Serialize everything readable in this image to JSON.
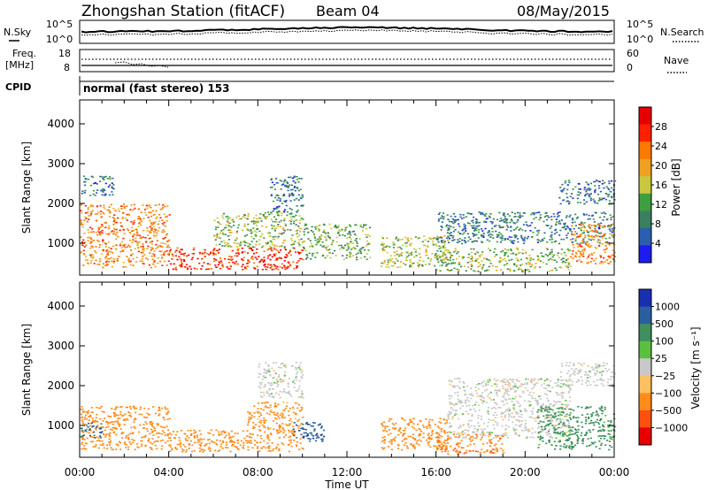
{
  "header": {
    "station": "Zhongshan Station (fitACF)",
    "beam": "Beam 04",
    "date": "08/May/2015"
  },
  "noise_panel": {
    "left_label": "N.Sky",
    "right_label": "N.Search",
    "left_ticks": [
      "10^5",
      "10^0"
    ],
    "right_ticks": [
      "10^5",
      "10^0"
    ]
  },
  "freq_panel": {
    "left_label_1": "Freq.",
    "left_label_2": "[MHz]",
    "right_label": "Nave",
    "left_ticks": [
      "18",
      "8"
    ],
    "right_ticks": [
      "60",
      "0"
    ]
  },
  "cpid": {
    "label": "CPID",
    "text": "normal (fast stereo) 153"
  },
  "colors": {
    "power_scale": [
      "#1c1cf0",
      "#2a5fb0",
      "#3a7f60",
      "#3f9f3f",
      "#c8c83c",
      "#f0a020",
      "#ff7800",
      "#ff2000",
      "#e80000"
    ],
    "velocity_scale": [
      "#e80000",
      "#ff5010",
      "#ff8c1a",
      "#ffc060",
      "#c8c8c8",
      "#5ac040",
      "#3f8f5f",
      "#2a5f9f",
      "#1830b0"
    ]
  },
  "chart_data": [
    {
      "type": "heatmap",
      "name": "power",
      "title": "",
      "xlabel": "Time UT",
      "ylabel": "Slant Range [km]",
      "x_ticks": [
        "00:00",
        "04:00",
        "08:00",
        "12:00",
        "16:00",
        "20:00",
        "00:00"
      ],
      "xlim": [
        0,
        24
      ],
      "ylim": [
        200,
        4600
      ],
      "y_ticks": [
        1000,
        2000,
        3000,
        4000
      ],
      "colorbar": {
        "label": "Power [dB]",
        "ticks": [
          4,
          8,
          12,
          16,
          20,
          24,
          28
        ],
        "range": [
          0,
          32
        ]
      },
      "regions": [
        {
          "t": [
            0.0,
            4.0
          ],
          "r": [
            400,
            2000
          ],
          "value": 22
        },
        {
          "t": [
            0.0,
            1.5
          ],
          "r": [
            2200,
            2700
          ],
          "value": 8
        },
        {
          "t": [
            4.0,
            10.0
          ],
          "r": [
            350,
            900
          ],
          "value": 27
        },
        {
          "t": [
            6.0,
            10.0
          ],
          "r": [
            900,
            1800
          ],
          "value": 14
        },
        {
          "t": [
            8.5,
            10.0
          ],
          "r": [
            1800,
            2700
          ],
          "value": 7
        },
        {
          "t": [
            10.0,
            13.0
          ],
          "r": [
            600,
            1500
          ],
          "value": 13
        },
        {
          "t": [
            13.5,
            16.5
          ],
          "r": [
            400,
            1200
          ],
          "value": 15
        },
        {
          "t": [
            16.0,
            22.0
          ],
          "r": [
            300,
            900
          ],
          "value": 14
        },
        {
          "t": [
            16.0,
            24.0
          ],
          "r": [
            1000,
            1800
          ],
          "value": 8
        },
        {
          "t": [
            22.0,
            24.0
          ],
          "r": [
            500,
            1500
          ],
          "value": 21
        },
        {
          "t": [
            21.5,
            24.0
          ],
          "r": [
            2000,
            2600
          ],
          "value": 7
        }
      ]
    },
    {
      "type": "heatmap",
      "name": "velocity",
      "title": "",
      "xlabel": "Time UT",
      "ylabel": "Slant Range [km]",
      "x_ticks": [
        "00:00",
        "04:00",
        "08:00",
        "12:00",
        "16:00",
        "20:00",
        "00:00"
      ],
      "xlim": [
        0,
        24
      ],
      "ylim": [
        200,
        4600
      ],
      "y_ticks": [
        1000,
        2000,
        3000,
        4000
      ],
      "colorbar": {
        "label": "Velocity [m s⁻¹]",
        "ticks": [
          "1000",
          "500",
          "100",
          "25",
          "−25",
          "−100",
          "−500",
          "−1000"
        ]
      },
      "regions": [
        {
          "t": [
            0.0,
            4.0
          ],
          "r": [
            400,
            1500
          ],
          "value": -300
        },
        {
          "t": [
            0.0,
            1.0
          ],
          "r": [
            700,
            1100
          ],
          "value": 600
        },
        {
          "t": [
            4.0,
            10.0
          ],
          "r": [
            350,
            900
          ],
          "value": -250
        },
        {
          "t": [
            7.5,
            10.0
          ],
          "r": [
            900,
            1600
          ],
          "value": -150
        },
        {
          "t": [
            8.0,
            10.0
          ],
          "r": [
            1700,
            2600
          ],
          "value": 0
        },
        {
          "t": [
            9.5,
            11.0
          ],
          "r": [
            600,
            1100
          ],
          "value": 800
        },
        {
          "t": [
            13.5,
            16.5
          ],
          "r": [
            400,
            1200
          ],
          "value": -200
        },
        {
          "t": [
            16.5,
            22.0
          ],
          "r": [
            700,
            2200
          ],
          "value": 0
        },
        {
          "t": [
            16.0,
            19.0
          ],
          "r": [
            300,
            800
          ],
          "value": -400
        },
        {
          "t": [
            20.5,
            24.0
          ],
          "r": [
            400,
            1500
          ],
          "value": 150
        },
        {
          "t": [
            21.5,
            24.0
          ],
          "r": [
            2000,
            2600
          ],
          "value": 0
        }
      ]
    }
  ]
}
